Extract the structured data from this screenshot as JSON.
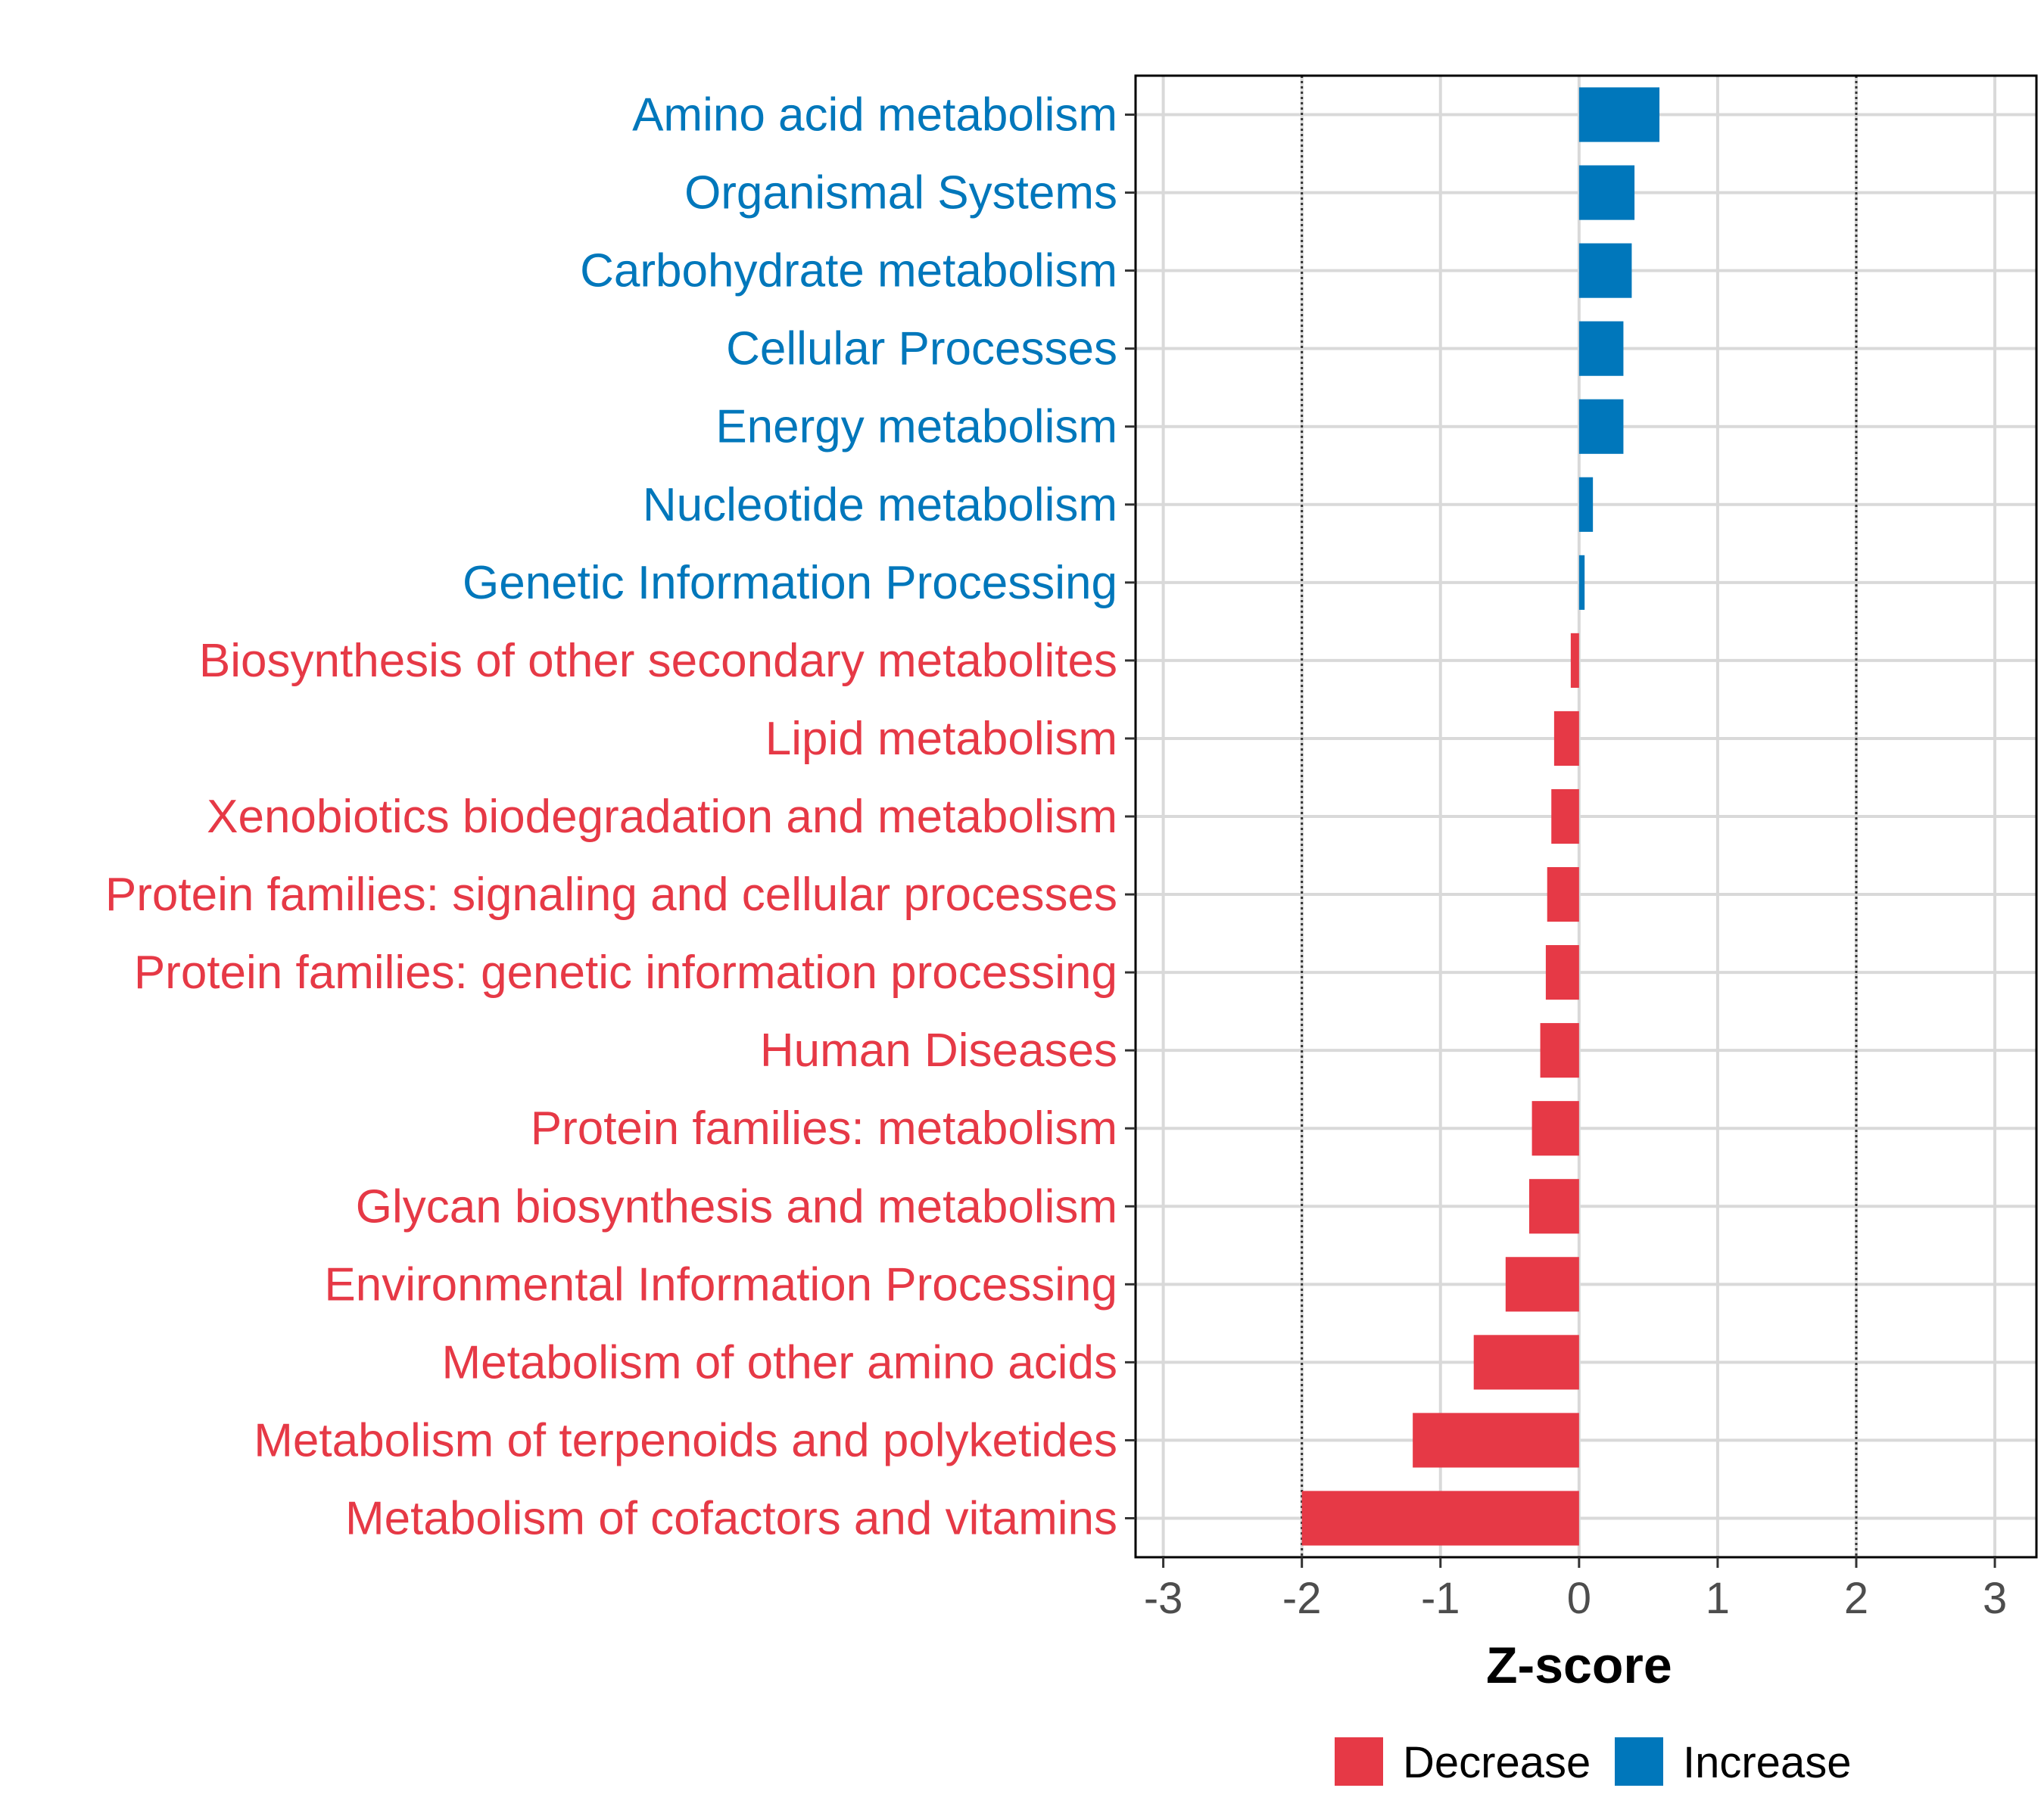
{
  "chart_data": {
    "type": "bar",
    "orientation": "horizontal",
    "xlabel": "Z-score",
    "xlim": [
      -3.2,
      3.3
    ],
    "x_ticks": [
      -3,
      -2,
      -1,
      0,
      1,
      2,
      3
    ],
    "x_tick_labels": [
      "-3",
      "-2",
      "-1",
      "0",
      "1",
      "2",
      "3"
    ],
    "reference_lines": [
      -2,
      2
    ],
    "grid": true,
    "categories": [
      "Amino acid metabolism",
      "Organismal Systems",
      "Carbohydrate metabolism",
      "Cellular Processes",
      "Energy metabolism",
      "Nucleotide metabolism",
      "Genetic Information Processing",
      "Biosynthesis of other secondary metabolites",
      "Lipid metabolism",
      "Xenobiotics biodegradation and metabolism",
      "Protein families: signaling and cellular processes",
      "Protein families: genetic information processing",
      "Human Diseases",
      "Protein families: metabolism",
      "Glycan biosynthesis and metabolism",
      "Environmental Information Processing",
      "Metabolism of other amino acids",
      "Metabolism of terpenoids and polyketides",
      "Metabolism of cofactors and vitamins"
    ],
    "values": [
      0.58,
      0.4,
      0.38,
      0.32,
      0.32,
      0.1,
      0.04,
      -0.06,
      -0.18,
      -0.2,
      -0.23,
      -0.24,
      -0.28,
      -0.34,
      -0.36,
      -0.53,
      -0.76,
      -1.2,
      -2.0
    ],
    "groups": [
      "Increase",
      "Increase",
      "Increase",
      "Increase",
      "Increase",
      "Increase",
      "Increase",
      "Decrease",
      "Decrease",
      "Decrease",
      "Decrease",
      "Decrease",
      "Decrease",
      "Decrease",
      "Decrease",
      "Decrease",
      "Decrease",
      "Decrease",
      "Decrease"
    ],
    "legend": {
      "position": "bottom",
      "entries": [
        {
          "label": "Decrease",
          "color": "#e63946"
        },
        {
          "label": "Increase",
          "color": "#0077bb"
        }
      ]
    },
    "colors": {
      "Decrease": "#e63946",
      "Increase": "#0077bb"
    }
  }
}
